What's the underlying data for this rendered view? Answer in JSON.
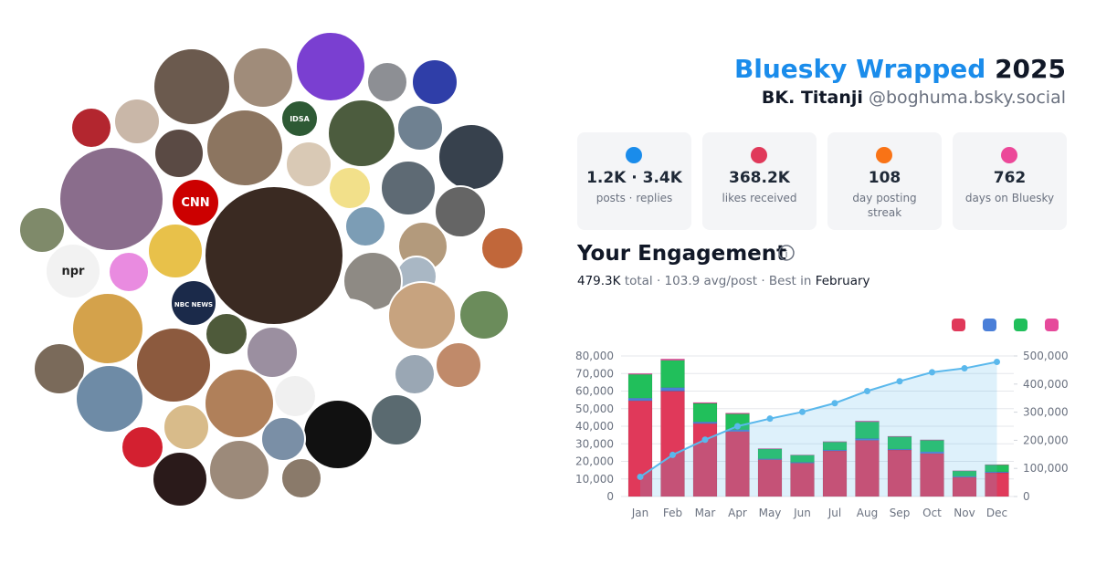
{
  "header": {
    "title": "Bluesky Wrapped",
    "year": "2025",
    "name": "BK. Titanji",
    "handle": "@boghuma.bsky.social"
  },
  "avatar_logos": [
    "CNN",
    "npr",
    "IDSA",
    "NBC NEWS"
  ],
  "stats": [
    {
      "value": "1.2K · 3.4K",
      "label": "posts · replies"
    },
    {
      "value": "368.2K",
      "label": "likes received"
    },
    {
      "value": "108",
      "label": "day posting streak"
    },
    {
      "value": "762",
      "label": "days on Bluesky"
    }
  ],
  "engagement": {
    "title": "Your Engagement",
    "total": "479.3K",
    "summary": "total · 103.9 avg/post · Best in",
    "best_month": "February"
  },
  "chart_data": {
    "type": "bar",
    "stacked": true,
    "categories": [
      "Jan",
      "Feb",
      "Mar",
      "Apr",
      "May",
      "Jun",
      "Jul",
      "Aug",
      "Sep",
      "Oct",
      "Nov",
      "Dec"
    ],
    "series": [
      {
        "color": "#e0395a",
        "values": [
          54500,
          60000,
          41500,
          37000,
          21000,
          19000,
          26000,
          32000,
          26500,
          24500,
          11000,
          13500
        ]
      },
      {
        "color": "#4a7fd8",
        "values": [
          1500,
          2000,
          1000,
          1000,
          500,
          500,
          500,
          1000,
          500,
          1000,
          500,
          500
        ]
      },
      {
        "color": "#21bf5b",
        "values": [
          13500,
          15500,
          10500,
          9000,
          5500,
          4000,
          4500,
          9500,
          7000,
          6500,
          3000,
          4000
        ]
      },
      {
        "color": "#e64a9b",
        "values": [
          500,
          800,
          500,
          500,
          300,
          200,
          300,
          500,
          300,
          300,
          200,
          200
        ]
      },
      {
        "type": "line",
        "axis": "y2",
        "color": "#5ab8ec",
        "values": [
          70000,
          148000,
          202000,
          250000,
          277000,
          301000,
          332000,
          375000,
          410000,
          442000,
          456000,
          479000
        ]
      }
    ],
    "ylim": [
      0,
      80000
    ],
    "yticks": [
      0,
      {
        "value": 10000,
        "label": "10,000"
      },
      {
        "value": 20000,
        "label": "20,000"
      },
      {
        "value": 30000,
        "label": "30,000"
      },
      {
        "value": 40000,
        "label": "40,000"
      },
      {
        "value": 50000,
        "label": "50,000"
      },
      {
        "value": 60000,
        "label": "60,000"
      },
      {
        "value": 70000,
        "label": "70,000"
      },
      {
        "value": 80000,
        "label": "80,000"
      }
    ],
    "y2lim": [
      0,
      500000
    ],
    "y2ticks": [
      0,
      {
        "value": 100000,
        "label": "100,000"
      },
      {
        "value": 200000,
        "label": "200,000"
      },
      {
        "value": 300000,
        "label": "300,000"
      },
      {
        "value": 400000,
        "label": "400,000"
      },
      {
        "value": 500000,
        "label": "500,000"
      }
    ],
    "grid": true
  }
}
